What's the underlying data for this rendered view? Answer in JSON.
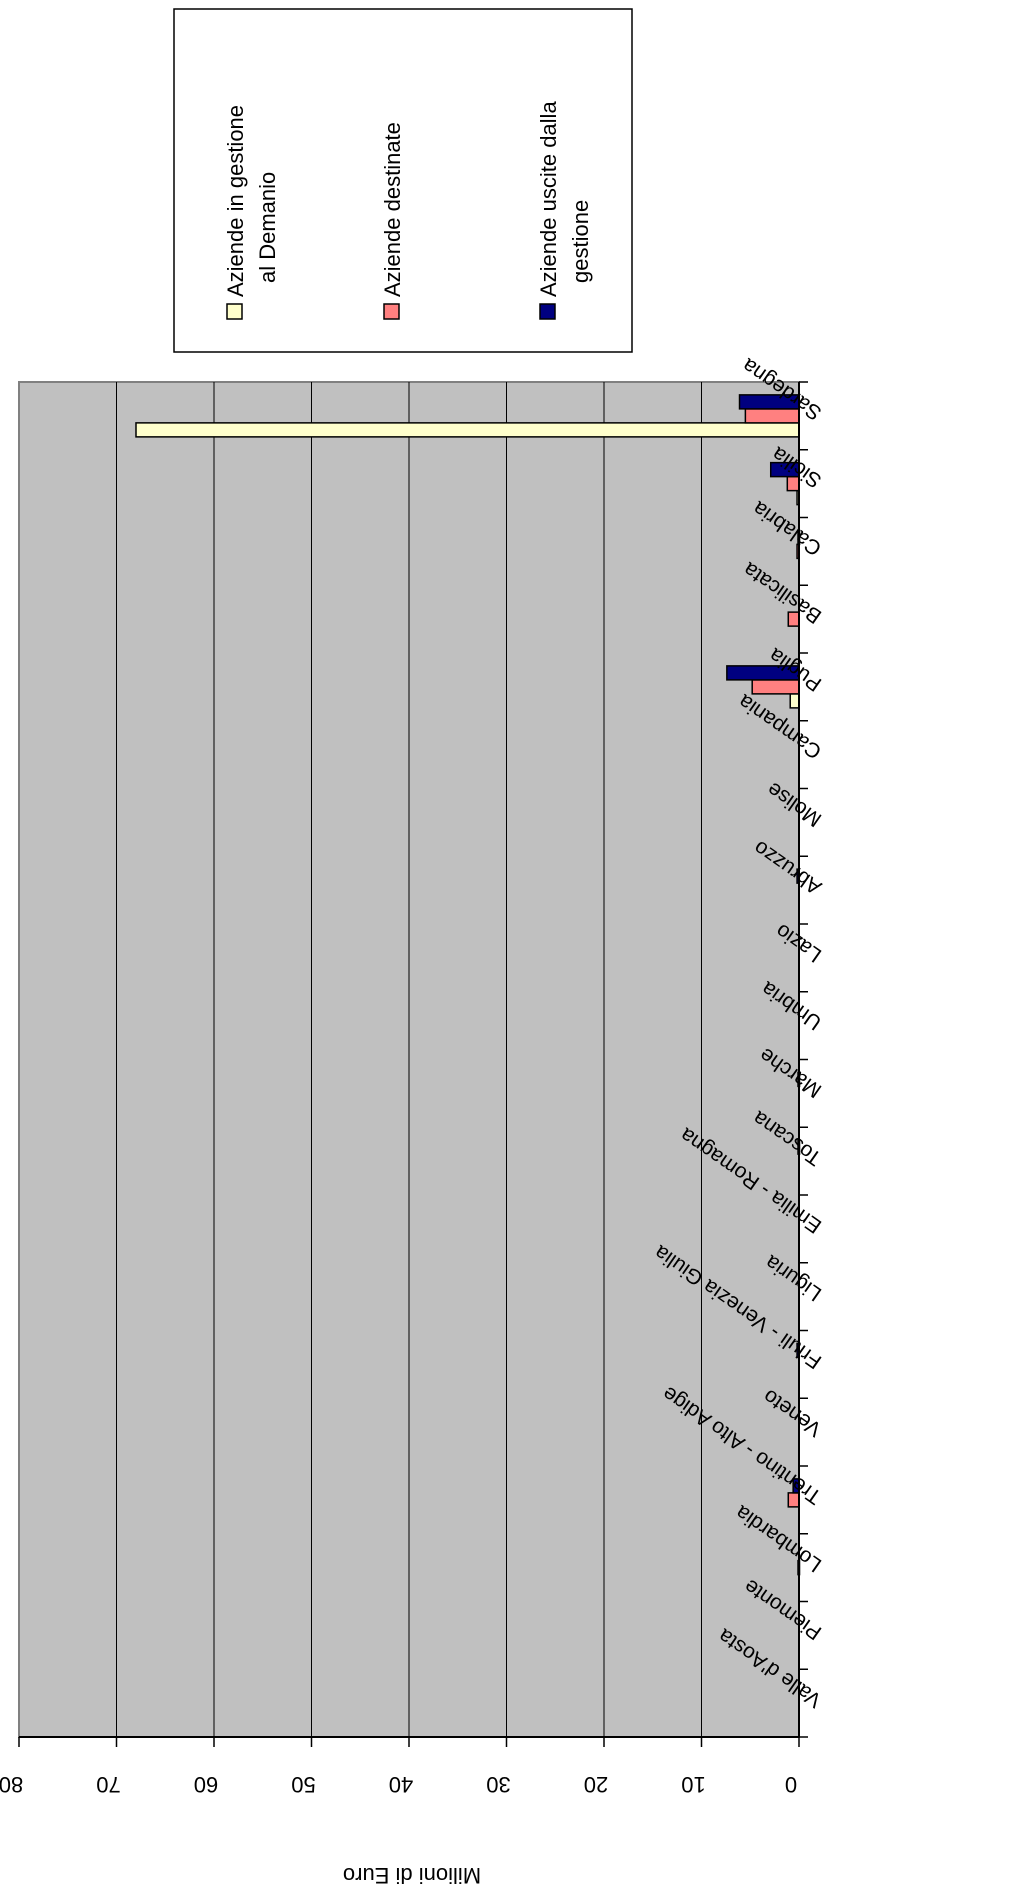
{
  "chart_data": {
    "type": "bar",
    "orientation": "horizontal",
    "rotated": "upside-down",
    "categories": [
      "Valle d'Aosta",
      "Piemonte",
      "Lombardia",
      "Trentino - Alto Adige",
      "Veneto",
      "Friuli - Venezia Giulia",
      "Liguria",
      "Emilia - Romagna",
      "Toscana",
      "Marche",
      "Umbria",
      "Lazio",
      "Abruzzo",
      "Molise",
      "Campania",
      "Puglia",
      "Basilicata",
      "Calabria",
      "Sicilia",
      "Sardegna"
    ],
    "series": [
      {
        "name": "Aziende in gestione al Demanio",
        "color": "#ffffcc",
        "values": [
          0,
          0,
          0,
          0,
          0,
          0,
          0,
          0,
          0,
          0,
          0,
          0,
          0,
          0,
          0,
          0.9,
          0,
          0,
          0.2,
          68
        ]
      },
      {
        "name": "Aziende destinate",
        "color": "#ff8080",
        "values": [
          0,
          0,
          0.1,
          1.1,
          0,
          0,
          0,
          0,
          0,
          0,
          0,
          0,
          0,
          0,
          0,
          4.8,
          1.1,
          0.2,
          1.2,
          5.5
        ]
      },
      {
        "name": "Aziende uscite dalla gestione",
        "color": "#000080",
        "values": [
          0,
          0,
          0,
          0.6,
          0,
          0.2,
          0,
          0,
          0.1,
          0.1,
          0,
          0,
          0.2,
          0,
          0,
          7.4,
          0,
          0.1,
          2.9,
          6.1
        ]
      }
    ],
    "xlabel": "",
    "ylabel": "Milioni di Euro",
    "ylim": [
      0,
      80
    ],
    "yticks": [
      0,
      10,
      20,
      30,
      40,
      50,
      60,
      70,
      80
    ],
    "grid": true,
    "legend_position": "right"
  }
}
